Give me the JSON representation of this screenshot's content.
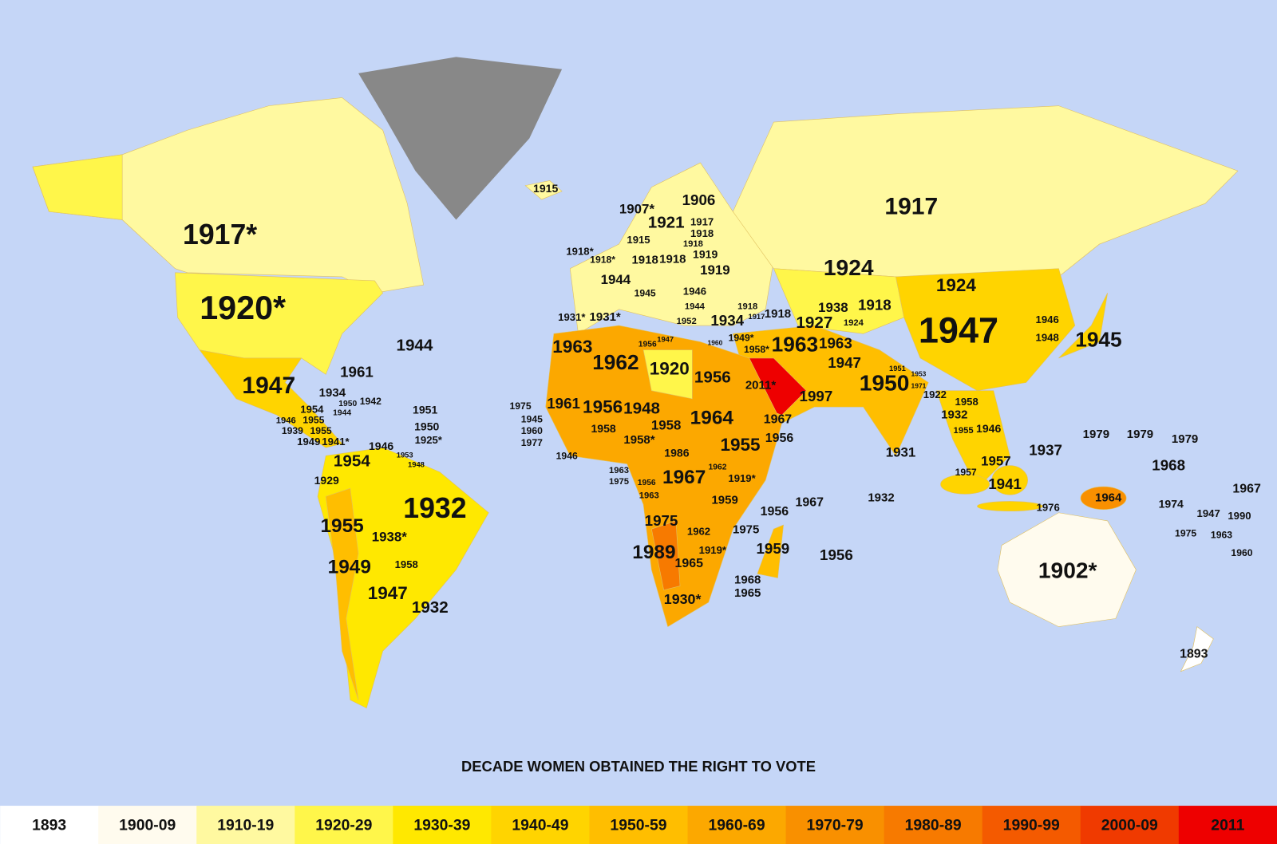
{
  "title": "DECADE WOMEN OBTAINED THE RIGHT TO VOTE",
  "legend": [
    {
      "label": "1893",
      "color": "#ffffff"
    },
    {
      "label": "1900-09",
      "color": "#fffbee"
    },
    {
      "label": "1910-19",
      "color": "#fff9a0"
    },
    {
      "label": "1920-29",
      "color": "#fff64a"
    },
    {
      "label": "1930-39",
      "color": "#ffe800"
    },
    {
      "label": "1940-49",
      "color": "#ffd400"
    },
    {
      "label": "1950-59",
      "color": "#ffbe00"
    },
    {
      "label": "1960-69",
      "color": "#fca800"
    },
    {
      "label": "1970-79",
      "color": "#f99000"
    },
    {
      "label": "1980-89",
      "color": "#f77a00"
    },
    {
      "label": "1990-99",
      "color": "#f45a00"
    },
    {
      "label": "2000-09",
      "color": "#f03a00"
    },
    {
      "label": "2011",
      "color": "#ee0000"
    }
  ],
  "labels": [
    "1917*",
    "1920*",
    "1915",
    "1907*",
    "1906",
    "1921",
    "1917",
    "1918",
    "1918",
    "1915",
    "1918*",
    "1918*",
    "1918",
    "1918",
    "1919",
    "1919",
    "1944",
    "1946",
    "1945",
    "1944",
    "1952",
    "1931*",
    "1931*",
    "1934",
    "1918",
    "1918",
    "1917",
    "1938",
    "1918",
    "1927",
    "1924",
    "1924",
    "1924",
    "1917",
    "1947",
    "1946",
    "1948",
    "1945",
    "1944",
    "1961",
    "1947",
    "1934",
    "1950",
    "1942",
    "1944",
    "1954",
    "1955",
    "1946",
    "1939",
    "1955",
    "1949",
    "1941*",
    "1951",
    "1950",
    "1925*",
    "1946",
    "1953",
    "1948",
    "1954",
    "1929",
    "1932",
    "1955",
    "1938*",
    "1958",
    "1949",
    "1947",
    "1932",
    "1963",
    "1962",
    "1920",
    "1956",
    "1956",
    "1947",
    "1960",
    "1949*",
    "1958*",
    "1963",
    "1963",
    "1947",
    "2011*",
    "1997",
    "1950",
    "1951",
    "1953",
    "1971",
    "1922",
    "1958",
    "1932",
    "1955",
    "1946",
    "1975",
    "1961",
    "1956",
    "1948",
    "1945",
    "1958",
    "1958",
    "1960",
    "1977",
    "1958*",
    "1964",
    "1955",
    "1967",
    "1956",
    "1946",
    "1986",
    "1962",
    "1963",
    "1975",
    "1956",
    "1963",
    "1967",
    "1919*",
    "1959",
    "1975",
    "1962",
    "1975",
    "1989",
    "1919*",
    "1965",
    "1959",
    "1968",
    "1965",
    "1930*",
    "1956",
    "1967",
    "1956",
    "1932",
    "1931",
    "1937",
    "1957",
    "1957",
    "1941",
    "1976",
    "1964",
    "1979",
    "1979",
    "1979",
    "1968",
    "1967",
    "1974",
    "1947",
    "1990",
    "1975",
    "1963",
    "1960",
    "1902*",
    "1893"
  ]
}
